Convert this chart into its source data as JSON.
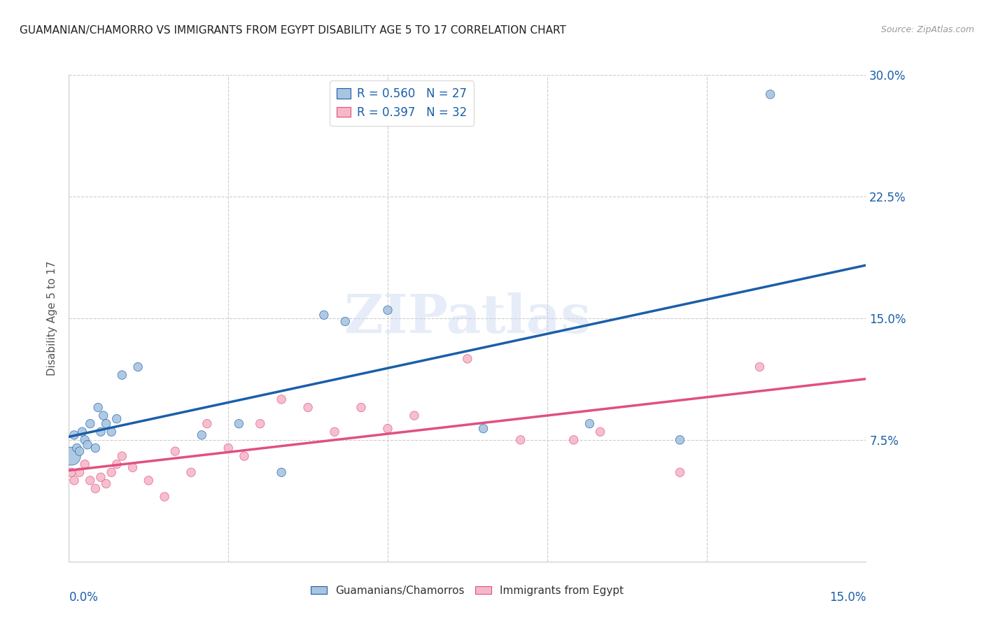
{
  "title": "GUAMANIAN/CHAMORRO VS IMMIGRANTS FROM EGYPT DISABILITY AGE 5 TO 17 CORRELATION CHART",
  "source": "Source: ZipAtlas.com",
  "ylabel": "Disability Age 5 to 17",
  "xlim": [
    0.0,
    15.0
  ],
  "ylim": [
    0.0,
    30.0
  ],
  "yticks": [
    0.0,
    7.5,
    15.0,
    22.5,
    30.0
  ],
  "ytick_labels": [
    "",
    "7.5%",
    "15.0%",
    "22.5%",
    "30.0%"
  ],
  "xticks": [
    0.0,
    3.0,
    6.0,
    9.0,
    12.0,
    15.0
  ],
  "background_color": "#ffffff",
  "watermark": "ZIPatlas",
  "blue_series": {
    "name": "Guamanians/Chamorros",
    "R": 0.56,
    "N": 27,
    "scatter_color": "#a8c4e0",
    "line_color": "#1a5fa8",
    "x": [
      0.05,
      0.1,
      0.15,
      0.2,
      0.25,
      0.3,
      0.35,
      0.4,
      0.5,
      0.55,
      0.6,
      0.65,
      0.7,
      0.8,
      0.9,
      1.0,
      1.3,
      2.5,
      3.2,
      4.0,
      4.8,
      5.2,
      6.0,
      7.8,
      9.8,
      11.5,
      13.2
    ],
    "y": [
      6.5,
      7.8,
      7.0,
      6.8,
      8.0,
      7.5,
      7.2,
      8.5,
      7.0,
      9.5,
      8.0,
      9.0,
      8.5,
      8.0,
      8.8,
      11.5,
      12.0,
      7.8,
      8.5,
      5.5,
      15.2,
      14.8,
      15.5,
      8.2,
      8.5,
      7.5,
      28.8
    ],
    "sizes": [
      350,
      80,
      80,
      80,
      80,
      80,
      80,
      80,
      80,
      80,
      80,
      80,
      80,
      80,
      80,
      80,
      80,
      80,
      80,
      80,
      80,
      80,
      80,
      80,
      80,
      80,
      80
    ]
  },
  "pink_series": {
    "name": "Immigrants from Egypt",
    "R": 0.397,
    "N": 32,
    "scatter_color": "#f5b8c8",
    "line_color": "#e05080",
    "x": [
      0.05,
      0.1,
      0.2,
      0.3,
      0.4,
      0.5,
      0.6,
      0.7,
      0.8,
      0.9,
      1.0,
      1.2,
      1.5,
      1.8,
      2.0,
      2.3,
      2.6,
      3.0,
      3.3,
      3.6,
      4.0,
      4.5,
      5.0,
      5.5,
      6.0,
      6.5,
      7.5,
      8.5,
      9.5,
      10.0,
      11.5,
      13.0
    ],
    "y": [
      5.5,
      5.0,
      5.5,
      6.0,
      5.0,
      4.5,
      5.2,
      4.8,
      5.5,
      6.0,
      6.5,
      5.8,
      5.0,
      4.0,
      6.8,
      5.5,
      8.5,
      7.0,
      6.5,
      8.5,
      10.0,
      9.5,
      8.0,
      9.5,
      8.2,
      9.0,
      12.5,
      7.5,
      7.5,
      8.0,
      5.5,
      12.0
    ],
    "sizes": [
      80,
      80,
      80,
      80,
      80,
      80,
      80,
      80,
      80,
      80,
      80,
      80,
      80,
      80,
      80,
      80,
      80,
      80,
      80,
      80,
      80,
      80,
      80,
      80,
      80,
      80,
      80,
      80,
      80,
      80,
      80,
      80
    ]
  }
}
